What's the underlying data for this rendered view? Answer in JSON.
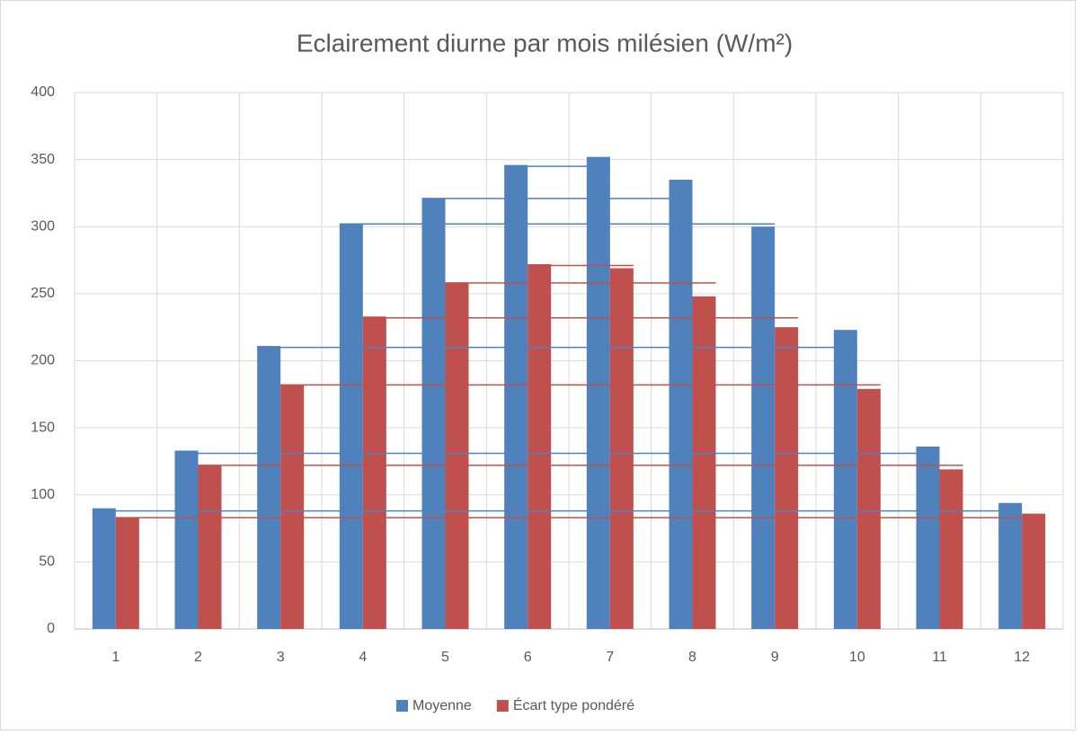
{
  "chart_data": {
    "type": "bar",
    "title": "Eclairement diurne par mois milésien (W/m²)",
    "categories": [
      "1",
      "2",
      "3",
      "4",
      "5",
      "6",
      "7",
      "8",
      "9",
      "10",
      "11",
      "12"
    ],
    "series": [
      {
        "name": "Moyenne",
        "color": "#4f81bd",
        "values": [
          90,
          133,
          211,
          302,
          321,
          346,
          352,
          335,
          300,
          223,
          136,
          94
        ],
        "levels": [
          88,
          131,
          210,
          302,
          321,
          345
        ]
      },
      {
        "name": "Écart type pondéré",
        "color": "#c0504d",
        "values": [
          83,
          122,
          182,
          233,
          258,
          272,
          269,
          248,
          225,
          179,
          119,
          86
        ],
        "levels": [
          83,
          122,
          182,
          232,
          258,
          271
        ]
      }
    ],
    "ylim": [
      0,
      400
    ],
    "yticks": [
      0,
      50,
      100,
      150,
      200,
      250,
      300,
      350,
      400
    ],
    "grid": true,
    "legend": "bottom"
  }
}
